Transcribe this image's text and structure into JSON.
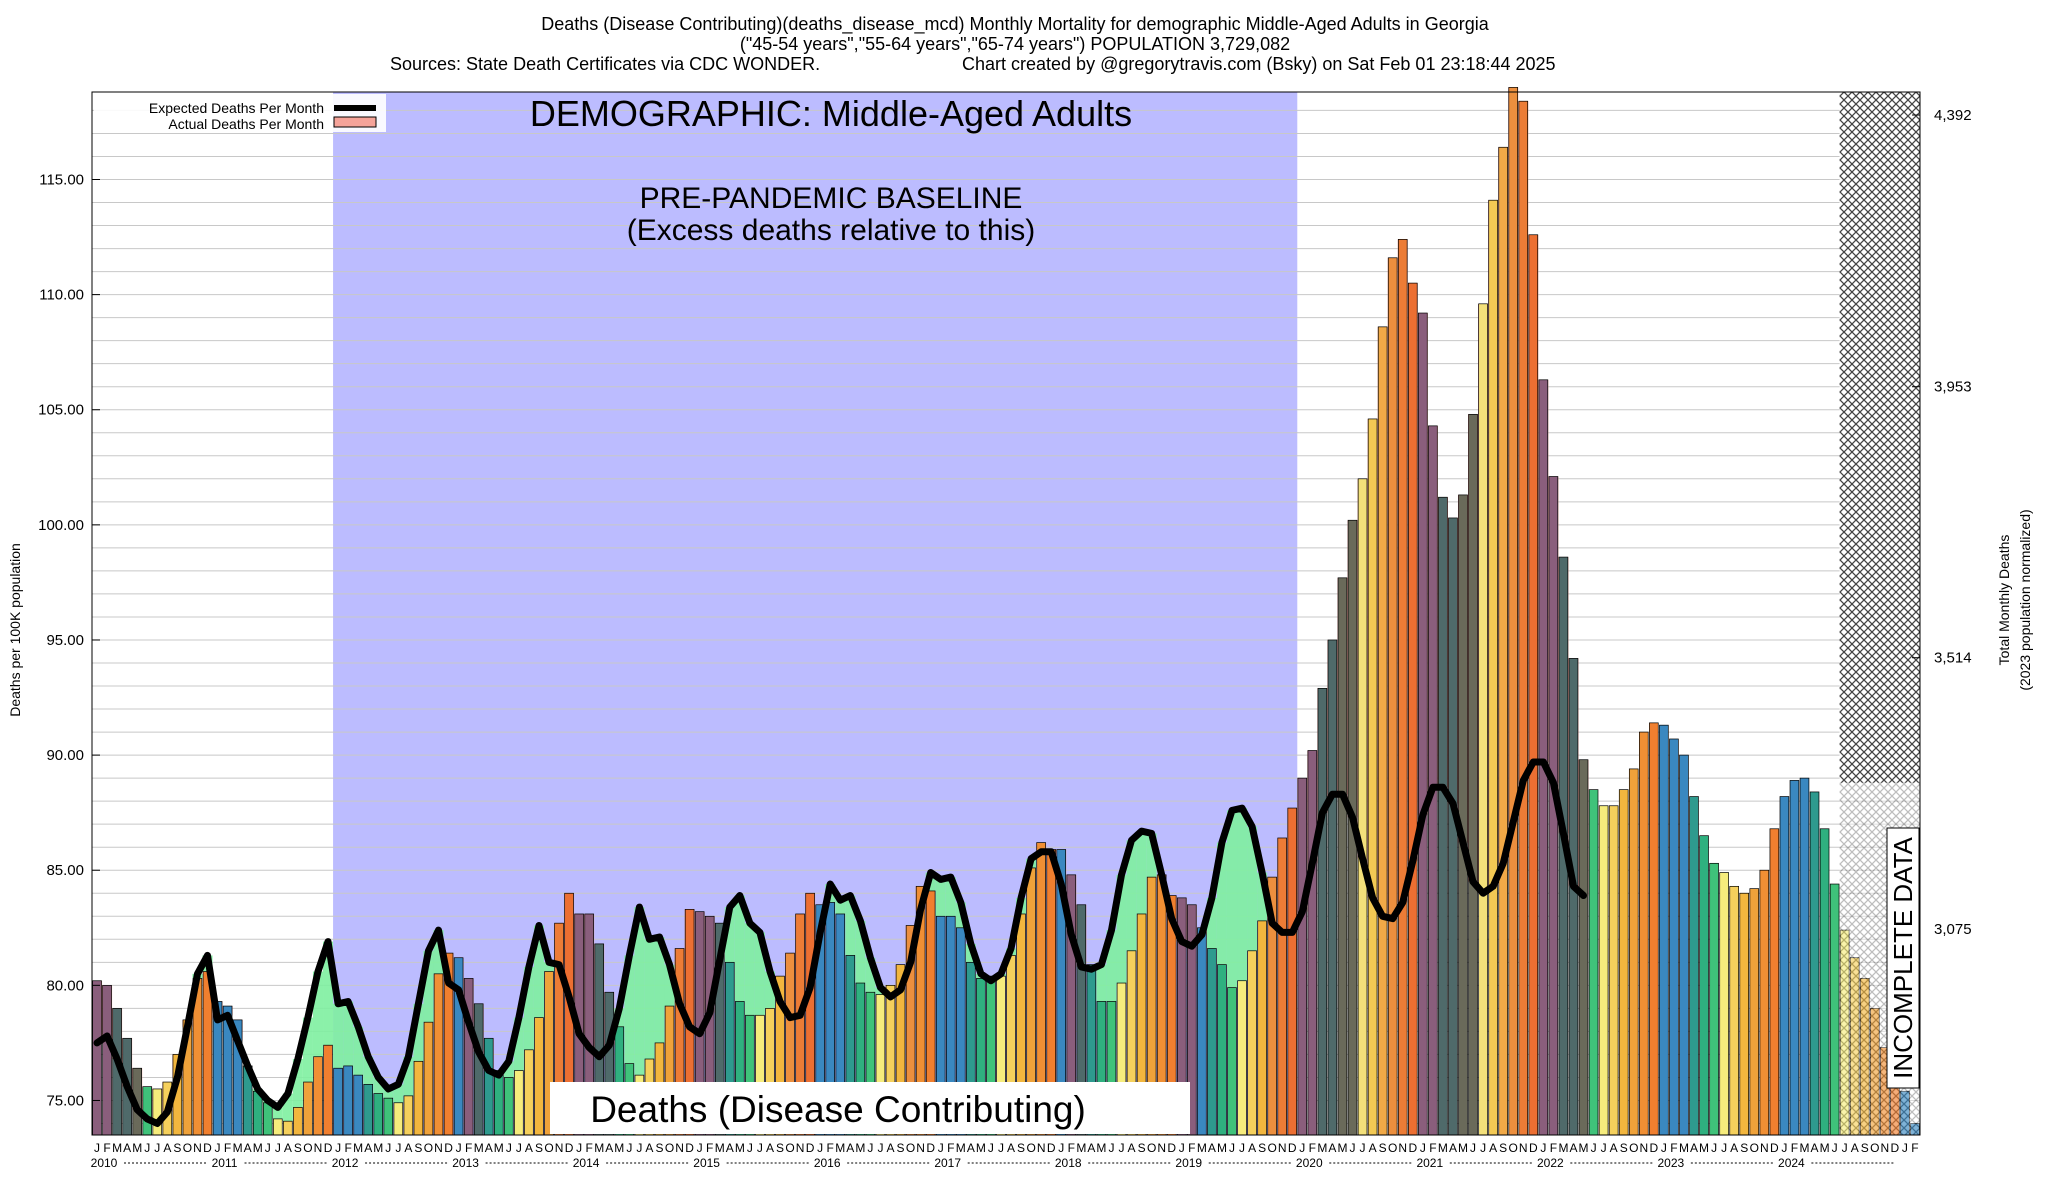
{
  "header": {
    "line1": "Deaths (Disease Contributing)(deaths_disease_mcd) Monthly Mortality for demographic Middle-Aged Adults in Georgia",
    "line2": "(\"45-54 years\",\"55-64 years\",\"65-74 years\") POPULATION 3,729,082",
    "line3_left": "Sources: State Death Certificates via CDC WONDER.",
    "line3_right": "Chart created by @gregorytravis.com (Bsky) on Sat Feb 01 23:18:44 2025"
  },
  "legend": {
    "expected": "Expected Deaths Per Month",
    "actual": "Actual Deaths Per Month"
  },
  "annotations": {
    "demographic": "DEMOGRAPHIC: Middle-Aged Adults",
    "baseline_1": "PRE-PANDEMIC BASELINE",
    "baseline_2": "(Excess deaths relative to this)",
    "bottom_banner": "Deaths (Disease Contributing)",
    "incomplete": "INCOMPLETE DATA"
  },
  "colors": {
    "baseline_region": "#bcbcff",
    "expected_line": "#000000",
    "excess_fill": "#f5a39a",
    "deficit_fill": "#7ef0a0",
    "incomplete_hatch": "#444444"
  },
  "chart_data": {
    "type": "bar",
    "title": "Deaths (Disease Contributing)(deaths_disease_mcd) Monthly Mortality for demographic Middle-Aged Adults in Georgia",
    "ylabel": "Deaths per 100K population",
    "ylabel_right_1": "Total Monthly Deaths",
    "ylabel_right_2": "(2023 population normalized)",
    "ylim": [
      73.5,
      118.8
    ],
    "y_ticks": [
      "75.00",
      "80.00",
      "85.00",
      "90.00",
      "95.00",
      "100.00",
      "105.00",
      "110.00",
      "115.00"
    ],
    "y_right_ticks": [
      {
        "label": "3,075",
        "value": 82.45
      },
      {
        "label": "3,514",
        "value": 94.23
      },
      {
        "label": "3,953",
        "value": 106.0
      },
      {
        "label": "4,392",
        "value": 117.8
      }
    ],
    "start": "2010-01",
    "month_letters": [
      "J",
      "F",
      "M",
      "A",
      "M",
      "J",
      "J",
      "A",
      "S",
      "O",
      "N",
      "D"
    ],
    "years": [
      "2010",
      "2011",
      "2012",
      "2013",
      "2014",
      "2015",
      "2016",
      "2017",
      "2018",
      "2019",
      "2020",
      "2021",
      "2022",
      "2023",
      "2024"
    ],
    "baseline_period": [
      "2012-01",
      "2019-12"
    ],
    "incomplete_from": "2024-07",
    "actual": [
      80.2,
      80.0,
      79.0,
      77.7,
      76.4,
      75.6,
      75.5,
      75.8,
      77.0,
      78.5,
      80.3,
      80.6,
      79.3,
      79.1,
      78.5,
      76.5,
      75.4,
      74.9,
      74.2,
      74.1,
      74.7,
      75.8,
      76.9,
      77.4,
      76.4,
      76.5,
      76.1,
      75.7,
      75.3,
      75.1,
      74.9,
      75.2,
      76.7,
      78.4,
      80.5,
      81.4,
      81.2,
      80.3,
      79.2,
      77.7,
      76.3,
      76.0,
      76.3,
      77.2,
      78.6,
      80.6,
      82.7,
      84.0,
      83.1,
      83.1,
      81.8,
      79.7,
      78.2,
      76.6,
      76.1,
      76.8,
      77.5,
      79.1,
      81.6,
      83.3,
      83.2,
      83.0,
      82.7,
      81.0,
      79.3,
      78.7,
      78.7,
      79.0,
      80.4,
      81.4,
      83.1,
      84.0,
      83.5,
      83.6,
      83.1,
      81.3,
      80.1,
      79.7,
      79.6,
      80.0,
      80.9,
      82.6,
      84.3,
      84.1,
      83.0,
      83.0,
      82.5,
      81.0,
      80.3,
      80.4,
      80.4,
      81.3,
      83.1,
      85.1,
      86.2,
      85.9,
      85.9,
      84.8,
      83.5,
      80.9,
      79.3,
      79.3,
      80.1,
      81.5,
      83.1,
      84.7,
      84.8,
      83.9,
      83.8,
      83.5,
      82.5,
      81.6,
      80.9,
      79.9,
      80.2,
      81.5,
      82.8,
      84.7,
      86.4,
      87.7,
      89.0,
      90.2,
      92.9,
      95.0,
      97.7,
      100.2,
      102.0,
      104.6,
      108.6,
      111.6,
      112.4,
      110.5,
      109.2,
      104.3,
      101.2,
      100.3,
      101.3,
      104.8,
      109.6,
      114.1,
      116.4,
      119.0,
      118.4,
      112.6,
      106.3,
      102.1,
      98.6,
      94.2,
      89.8,
      88.5,
      87.8,
      87.8,
      88.5,
      89.4,
      91.0,
      91.4,
      91.3,
      90.7,
      90.0,
      88.2,
      86.5,
      85.3,
      84.9,
      84.3,
      84.0,
      84.2,
      85.0,
      86.8,
      88.2,
      88.9,
      89.0,
      88.4,
      86.8,
      84.4,
      82.4,
      81.2,
      80.3,
      79.0,
      77.3,
      75.7,
      75.4,
      74.0
    ],
    "expected": [
      77.5,
      77.8,
      76.8,
      75.6,
      74.6,
      74.2,
      74.0,
      74.5,
      76.0,
      78.2,
      80.5,
      81.3,
      78.5,
      78.7,
      77.6,
      76.5,
      75.5,
      75.0,
      74.7,
      75.3,
      76.8,
      78.6,
      80.6,
      81.9,
      79.2,
      79.3,
      78.2,
      76.9,
      76.0,
      75.5,
      75.7,
      76.9,
      79.2,
      81.5,
      82.4,
      80.1,
      79.8,
      78.4,
      77.1,
      76.3,
      76.1,
      76.7,
      78.6,
      80.8,
      82.6,
      81.0,
      80.9,
      79.5,
      77.9,
      77.3,
      76.9,
      77.4,
      79.0,
      81.3,
      83.4,
      82.0,
      82.1,
      80.9,
      79.2,
      78.2,
      77.9,
      78.8,
      81.1,
      83.4,
      83.9,
      82.7,
      82.3,
      80.6,
      79.3,
      78.6,
      78.7,
      79.9,
      82.3,
      84.4,
      83.7,
      83.9,
      82.8,
      81.2,
      79.9,
      79.5,
      79.8,
      81.0,
      83.3,
      84.9,
      84.6,
      84.7,
      83.6,
      81.8,
      80.5,
      80.2,
      80.5,
      81.6,
      83.8,
      85.5,
      85.8,
      85.8,
      84.4,
      82.2,
      80.8,
      80.7,
      80.9,
      82.4,
      84.8,
      86.3,
      86.7,
      86.6,
      84.8,
      82.9,
      81.9,
      81.7,
      82.2,
      83.8,
      86.2,
      87.6,
      87.7,
      86.9,
      84.9,
      82.7,
      82.3,
      82.3,
      83.2,
      85.3,
      87.5,
      88.3,
      88.3,
      87.3,
      85.5,
      83.8,
      83.0,
      82.9,
      83.6,
      85.4,
      87.4,
      88.6,
      88.6,
      87.9,
      86.2,
      84.5,
      84.0,
      84.3,
      85.3,
      87.1,
      88.9,
      89.7,
      89.7,
      88.8,
      86.6,
      84.3,
      83.9
    ]
  }
}
